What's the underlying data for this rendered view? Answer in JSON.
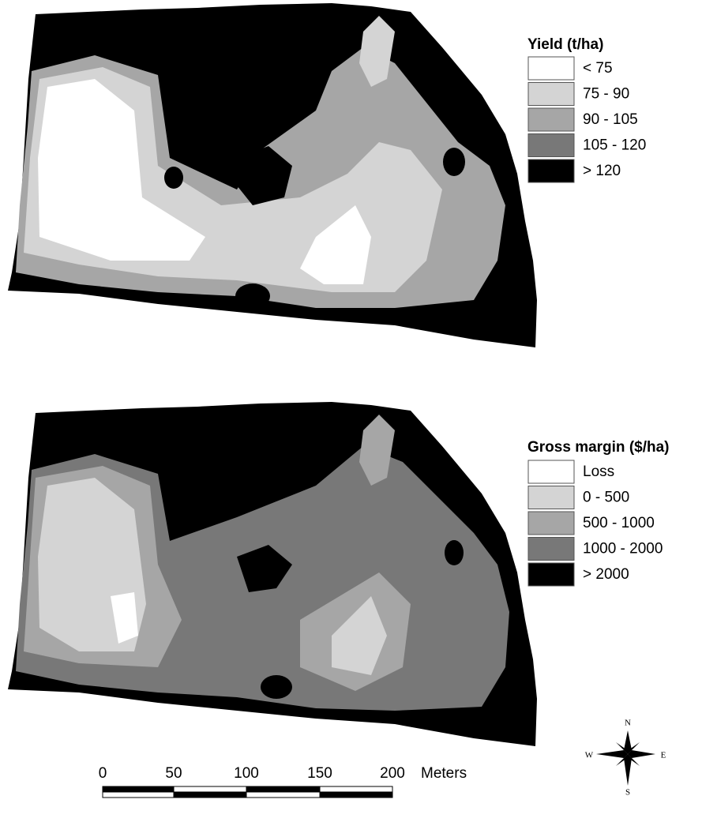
{
  "maps": [
    {
      "legend": {
        "title": "Yield (t/ha)",
        "items": [
          {
            "label": "< 75",
            "color": "#ffffff"
          },
          {
            "label": "75 - 90",
            "color": "#d4d4d4"
          },
          {
            "label": "90 - 105",
            "color": "#a6a6a6"
          },
          {
            "label": "105 - 120",
            "color": "#787878"
          },
          {
            "label": "> 120",
            "color": "#000000"
          }
        ]
      }
    },
    {
      "legend": {
        "title": "Gross margin ($/ha)",
        "items": [
          {
            "label": "Loss",
            "color": "#ffffff"
          },
          {
            "label": "0 - 500",
            "color": "#d4d4d4"
          },
          {
            "label": "500 - 1000",
            "color": "#a6a6a6"
          },
          {
            "label": "1000 - 2000",
            "color": "#787878"
          },
          {
            "label": "> 2000",
            "color": "#000000"
          }
        ]
      }
    }
  ],
  "scale_bar": {
    "labels": [
      0,
      50,
      100,
      150,
      200
    ],
    "unit": "Meters"
  },
  "north_arrow": {
    "n": "N",
    "s": "S",
    "e": "E",
    "w": "W"
  }
}
